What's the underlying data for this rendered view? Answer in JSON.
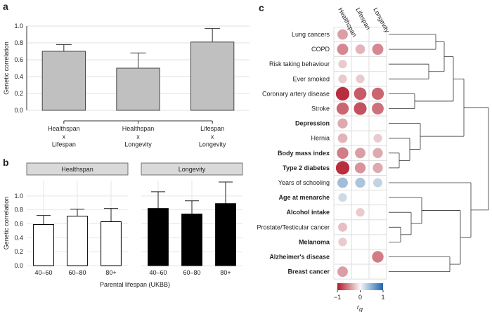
{
  "chart_data": [
    {
      "type": "bar",
      "panel_label": "a",
      "ylabel": "Genetic correlation",
      "categories": [
        "Healthspan\nx\nLifespan",
        "Healthspan\nx\nLongevity",
        "Lifespan\nx\nLongevity"
      ],
      "values": [
        0.7,
        0.5,
        0.81
      ],
      "errors": [
        0.08,
        0.18,
        0.16
      ],
      "color": "#c0c0c0",
      "ylim": [
        0,
        1
      ],
      "yticks": [
        {
          "value": 0,
          "label": "0.0"
        },
        0.2,
        0.4,
        0.6,
        0.8,
        {
          "value": 1,
          "label": "1.0"
        }
      ],
      "grid": true
    },
    {
      "type": "facet-bar",
      "panel_label": "b",
      "ylabel": "Genetic correlation",
      "xlabel": "Parental lifespan (UKBB)",
      "categories": [
        "40–60",
        "60–80",
        "80+"
      ],
      "facets": [
        {
          "title": "Healthspan",
          "color": "#ffffff",
          "values": [
            0.59,
            0.71,
            0.63
          ],
          "errors": [
            0.13,
            0.1,
            0.19
          ]
        },
        {
          "title": "Longevity",
          "color": "#000000",
          "values": [
            0.82,
            0.74,
            0.89
          ],
          "errors": [
            0.24,
            0.19,
            0.31
          ]
        }
      ],
      "ylim": [
        0,
        1.22
      ],
      "yticks": [
        {
          "value": 0,
          "label": "0.0"
        },
        0.2,
        0.4,
        0.6,
        0.8,
        {
          "value": 1,
          "label": "1.0"
        }
      ],
      "grid": true
    },
    {
      "type": "dot-heatmap",
      "panel_label": "c",
      "columns": [
        "Healthspan",
        "Lifespan",
        "Longevity"
      ],
      "rows": [
        "Lung cancers",
        "COPD",
        "Risk taking behaviour",
        "Ever smoked",
        "Coronary artery disease",
        "Stroke",
        "Depression",
        "Hernia",
        "Body mass index",
        "Type 2 diabetes",
        "Years of schooling",
        "Age at menarche",
        "Alcohol intake",
        "Prostate/Testicular cancer",
        "Melanoma",
        "Alzheimer's disease",
        "Breast cancer"
      ],
      "bold_rows": [
        6,
        8,
        9,
        11,
        12,
        14,
        15,
        16
      ],
      "values": [
        [
          -0.4,
          null,
          null
        ],
        [
          -0.5,
          -0.3,
          -0.5
        ],
        [
          -0.2,
          null,
          null
        ],
        [
          -0.2,
          -0.2,
          null
        ],
        [
          -0.9,
          -0.7,
          -0.65
        ],
        [
          -0.65,
          -0.75,
          -0.6
        ],
        [
          -0.35,
          null,
          null
        ],
        [
          -0.3,
          null,
          -0.2
        ],
        [
          -0.55,
          -0.4,
          -0.35
        ],
        [
          -0.9,
          -0.45,
          -0.35
        ],
        [
          0.4,
          0.35,
          0.25
        ],
        [
          0.2,
          null,
          null
        ],
        [
          null,
          -0.2,
          null
        ],
        [
          -0.25,
          null,
          null
        ],
        [
          -0.2,
          null,
          null
        ],
        [
          null,
          null,
          -0.55
        ],
        [
          -0.4,
          null,
          null
        ]
      ],
      "colormap": [
        "#b2182b",
        "#f7f7f7",
        "#2166ac"
      ],
      "clim": [
        -1,
        1
      ],
      "cticks": [
        {
          "value": -1,
          "label": "−1"
        },
        0,
        1
      ],
      "colorbar_label": {
        "text": "r",
        "subscript": "g"
      }
    }
  ]
}
